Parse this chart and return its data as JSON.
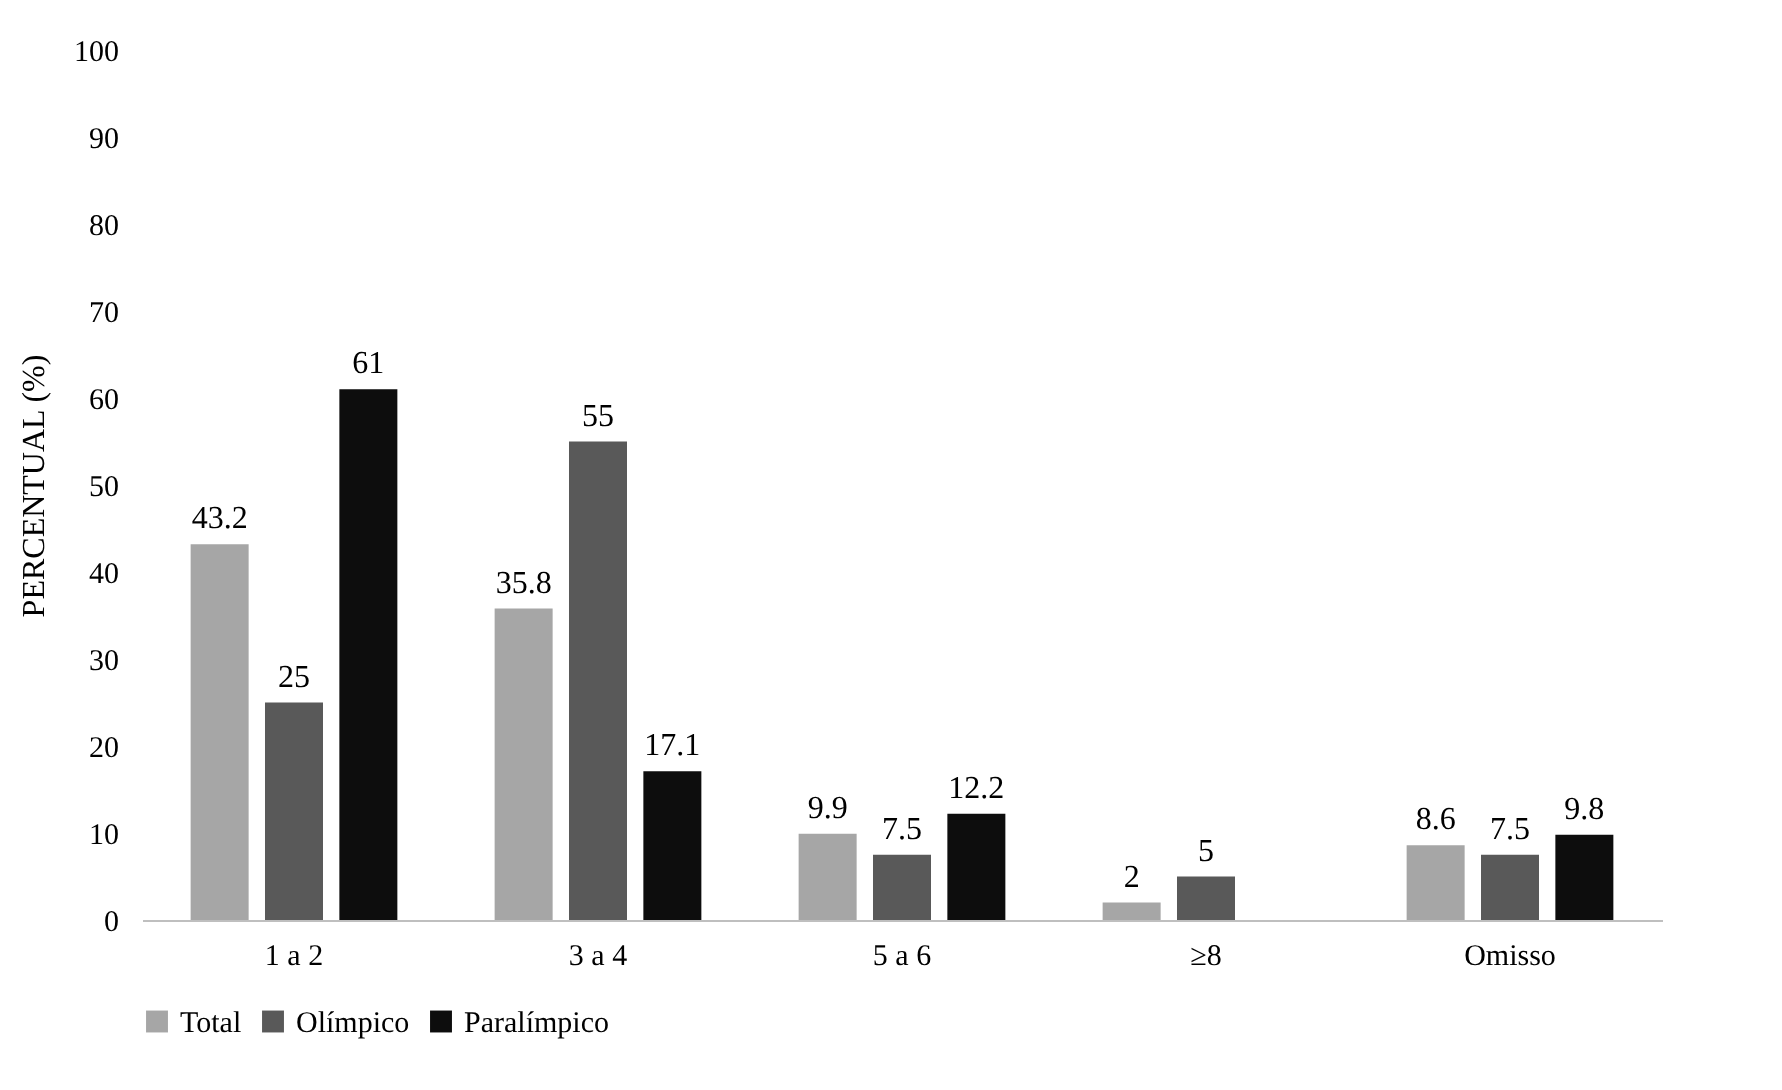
{
  "chart_data": {
    "type": "bar",
    "ylabel": "PERCENTUAL (%)",
    "categories": [
      "1 a 2",
      "3 a 4",
      "5 a 6",
      "≥8",
      "Omisso"
    ],
    "series": [
      {
        "name": "Total",
        "color": "#a6a6a6",
        "values": [
          43.2,
          35.8,
          9.9,
          2,
          8.6
        ]
      },
      {
        "name": "Olímpico",
        "color": "#595959",
        "values": [
          25,
          55,
          7.5,
          5,
          7.5
        ]
      },
      {
        "name": "Paralímpico",
        "color": "#0d0d0d",
        "values": [
          61,
          17.1,
          12.2,
          null,
          9.8
        ]
      }
    ],
    "ylim": [
      0,
      100
    ],
    "yticks": [
      0,
      10,
      20,
      30,
      40,
      50,
      60,
      70,
      80,
      90,
      100
    ],
    "grid": false,
    "legend": "bottom",
    "data_labels": true
  }
}
